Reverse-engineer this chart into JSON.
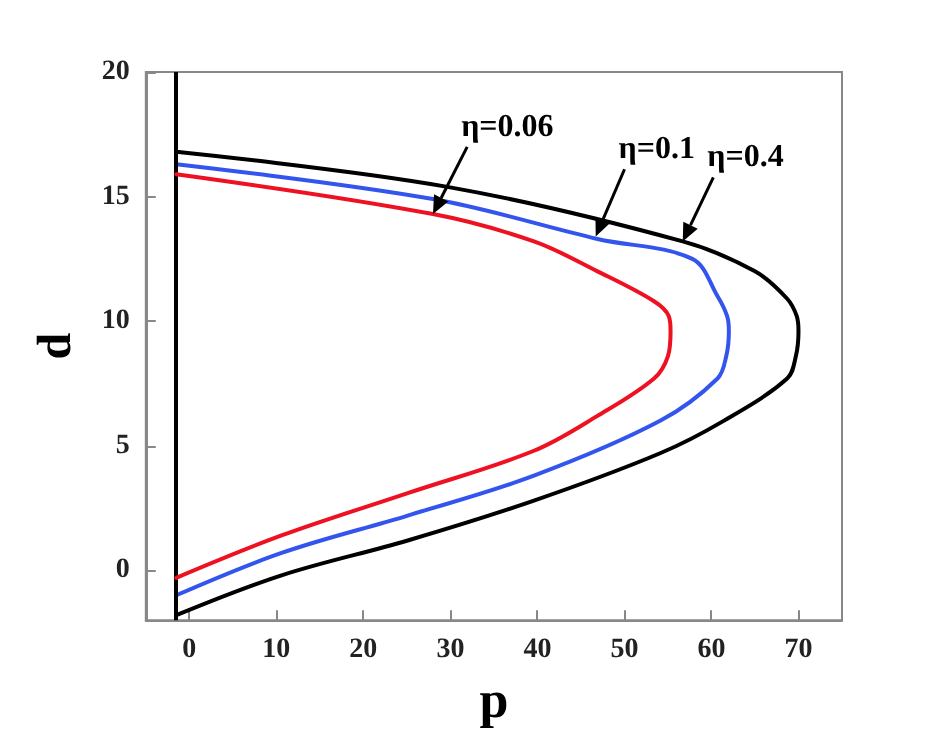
{
  "chart_data": {
    "type": "line",
    "xlabel": "p",
    "ylabel": "d",
    "xlim": [
      -5,
      75
    ],
    "xticks": [
      0,
      10,
      20,
      30,
      40,
      50,
      60,
      70
    ],
    "ylim": [
      -2,
      20
    ],
    "yticks": [
      0,
      5,
      10,
      15,
      20
    ],
    "marker": "none",
    "line_style": "solid",
    "series": [
      {
        "color": "#000000",
        "x": [
          -1.5,
          29.5,
          56.7,
          65,
          68.7,
          69.8,
          70,
          69.7,
          68.7,
          61.4,
          54.1,
          39.6,
          25.1,
          10.6,
          -1.5
        ],
        "values": [
          16.8,
          15.4,
          13.2,
          12.0,
          10.9,
          10.2,
          9.6,
          8.6,
          7.7,
          6.0,
          4.7,
          2.8,
          1.2,
          -0.2,
          -1.8
        ]
      },
      {
        "color": "#3355ee",
        "x": [
          -1.5,
          28,
          46.9,
          57.8,
          60.7,
          61.8,
          62,
          61.7,
          60.7,
          54.1,
          39.6,
          25.1,
          10.6,
          -1.5
        ],
        "values": [
          16.3,
          14.9,
          13.3,
          12.5,
          11.0,
          10.2,
          9.6,
          8.6,
          7.7,
          6.0,
          3.8,
          2.2,
          0.7,
          -1.0
        ]
      },
      {
        "color": "#ee1122",
        "x": [
          -1.5,
          28,
          39.6,
          46.9,
          53.4,
          55.1,
          55.3,
          55.0,
          53.4,
          46.9,
          39.6,
          25.1,
          10.6,
          -1.5
        ],
        "values": [
          15.9,
          14.3,
          13.2,
          12.0,
          10.8,
          10.2,
          9.6,
          8.6,
          7.7,
          6.2,
          4.8,
          3.1,
          1.4,
          -0.3
        ]
      }
    ],
    "ref_lines": [
      {
        "axis": "x",
        "value": -1.5,
        "color": "#000000",
        "line_style": "solid"
      }
    ],
    "annotations": [
      {
        "text": "η=0.06",
        "x": 28,
        "y": 14.3
      },
      {
        "text": "η=0.1",
        "x": 46.7,
        "y": 13.4
      },
      {
        "text": "η=0.4",
        "x": 56.7,
        "y": 13.2
      }
    ]
  }
}
